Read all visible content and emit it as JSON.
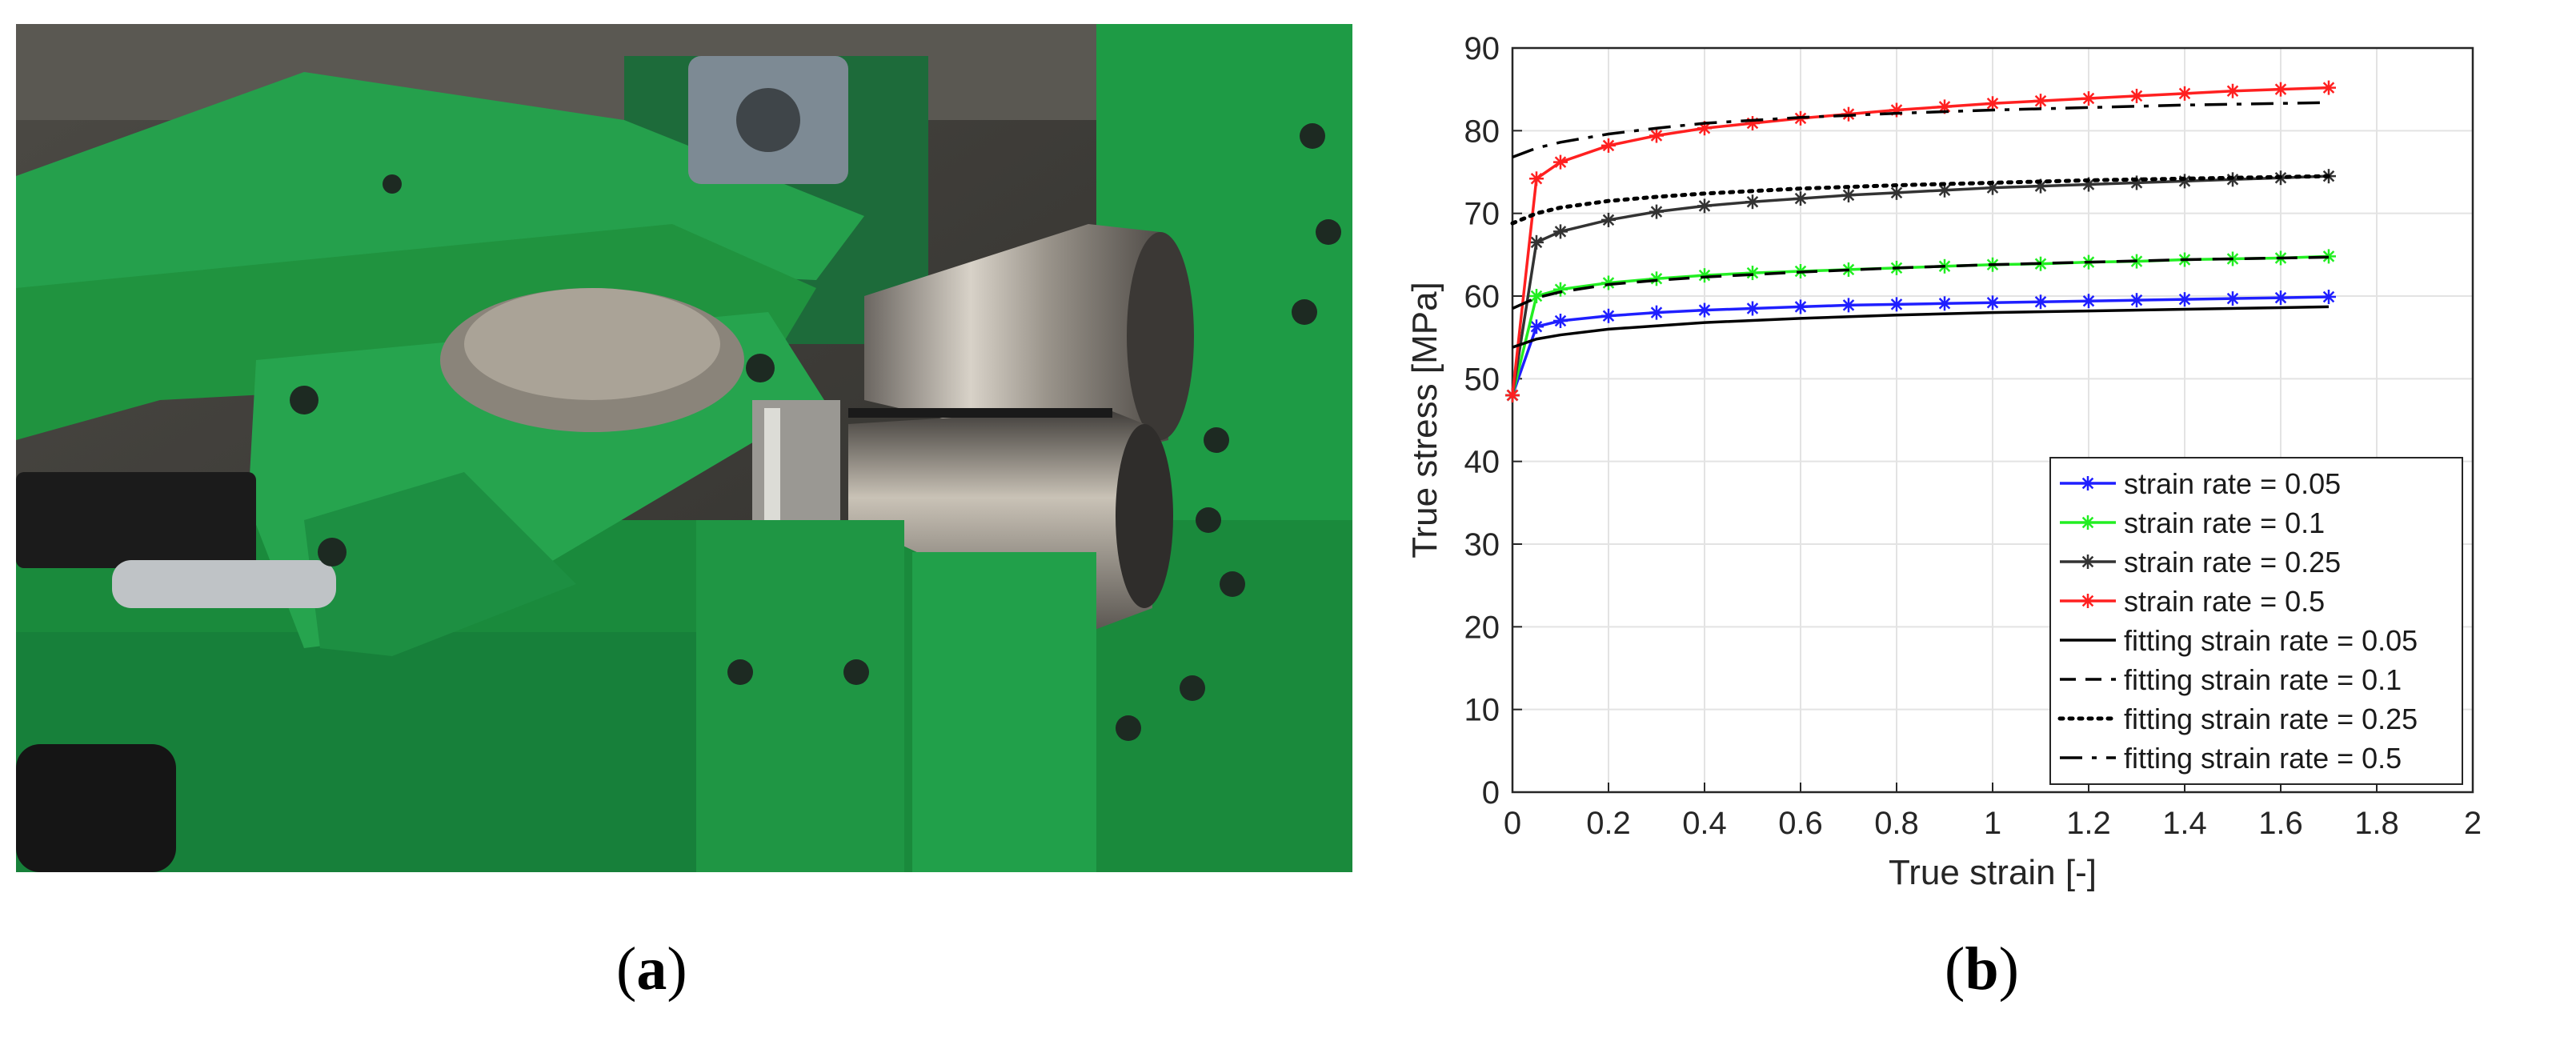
{
  "figure": {
    "panel_a_label": "a",
    "panel_b_label": "b"
  },
  "chart_data": {
    "type": "line",
    "title": "",
    "xlabel": "True strain [-]",
    "ylabel": "True stress [MPa]",
    "xlim": [
      0,
      2
    ],
    "ylim": [
      0,
      90
    ],
    "xticks": [
      0,
      0.2,
      0.4,
      0.6,
      0.8,
      1,
      1.2,
      1.4,
      1.6,
      1.8,
      2
    ],
    "xtick_labels": [
      "0",
      "0.2",
      "0.4",
      "0.6",
      "0.8",
      "1",
      "1.2",
      "1.4",
      "1.6",
      "1.8",
      "2"
    ],
    "yticks": [
      0,
      10,
      20,
      30,
      40,
      50,
      60,
      70,
      80,
      90
    ],
    "ytick_labels": [
      "0",
      "10",
      "20",
      "30",
      "40",
      "50",
      "60",
      "70",
      "80",
      "90"
    ],
    "grid": true,
    "legend_position": "bottom-right",
    "series": [
      {
        "name": "strain rate = 0.05",
        "color": "#1f1fff",
        "style": "solid-star",
        "x": [
          0,
          0.05,
          0.1,
          0.2,
          0.3,
          0.4,
          0.5,
          0.6,
          0.7,
          0.8,
          0.9,
          1.0,
          1.1,
          1.2,
          1.3,
          1.4,
          1.5,
          1.6,
          1.7
        ],
        "y": [
          48,
          56.3,
          57.0,
          57.6,
          58.0,
          58.3,
          58.5,
          58.7,
          58.9,
          59.0,
          59.1,
          59.2,
          59.3,
          59.4,
          59.5,
          59.6,
          59.7,
          59.8,
          59.9
        ]
      },
      {
        "name": "strain rate = 0.1",
        "color": "#22ee22",
        "style": "solid-star",
        "x": [
          0,
          0.05,
          0.1,
          0.2,
          0.3,
          0.4,
          0.5,
          0.6,
          0.7,
          0.8,
          0.9,
          1.0,
          1.1,
          1.2,
          1.3,
          1.4,
          1.5,
          1.6,
          1.7
        ],
        "y": [
          48,
          60.0,
          60.8,
          61.6,
          62.1,
          62.5,
          62.8,
          63.0,
          63.2,
          63.4,
          63.6,
          63.8,
          63.9,
          64.1,
          64.2,
          64.4,
          64.5,
          64.6,
          64.8
        ]
      },
      {
        "name": "strain rate = 0.25",
        "color": "#333333",
        "style": "solid-star",
        "x": [
          0,
          0.05,
          0.1,
          0.2,
          0.3,
          0.4,
          0.5,
          0.6,
          0.7,
          0.8,
          0.9,
          1.0,
          1.1,
          1.2,
          1.3,
          1.4,
          1.5,
          1.6,
          1.7
        ],
        "y": [
          48,
          66.5,
          67.8,
          69.2,
          70.2,
          70.9,
          71.4,
          71.8,
          72.2,
          72.5,
          72.8,
          73.1,
          73.3,
          73.5,
          73.7,
          73.9,
          74.1,
          74.3,
          74.5
        ]
      },
      {
        "name": "strain rate = 0.5",
        "color": "#ff2020",
        "style": "solid-star",
        "x": [
          0,
          0.05,
          0.1,
          0.2,
          0.3,
          0.4,
          0.5,
          0.6,
          0.7,
          0.8,
          0.9,
          1.0,
          1.1,
          1.2,
          1.3,
          1.4,
          1.5,
          1.6,
          1.7
        ],
        "y": [
          48,
          74.2,
          76.2,
          78.2,
          79.4,
          80.3,
          80.9,
          81.5,
          82.0,
          82.5,
          82.9,
          83.3,
          83.6,
          83.9,
          84.2,
          84.5,
          84.8,
          85.0,
          85.2
        ]
      },
      {
        "name": "fitting strain rate = 0.05",
        "color": "#000000",
        "style": "solid",
        "x": [
          0,
          0.05,
          0.1,
          0.2,
          0.3,
          0.4,
          0.6,
          0.8,
          1.0,
          1.2,
          1.4,
          1.6,
          1.7
        ],
        "y": [
          53.8,
          54.8,
          55.3,
          56.0,
          56.4,
          56.8,
          57.3,
          57.7,
          58.0,
          58.2,
          58.4,
          58.6,
          58.7
        ]
      },
      {
        "name": "fitting strain rate = 0.1",
        "color": "#000000",
        "style": "dashed",
        "x": [
          0,
          0.05,
          0.1,
          0.2,
          0.3,
          0.4,
          0.6,
          0.8,
          1.0,
          1.2,
          1.4,
          1.6,
          1.7
        ],
        "y": [
          58.5,
          59.8,
          60.5,
          61.4,
          61.9,
          62.3,
          62.9,
          63.4,
          63.8,
          64.1,
          64.4,
          64.6,
          64.7
        ]
      },
      {
        "name": "fitting strain rate = 0.25",
        "color": "#000000",
        "style": "dotted",
        "x": [
          0,
          0.05,
          0.1,
          0.2,
          0.3,
          0.4,
          0.6,
          0.8,
          1.0,
          1.2,
          1.4,
          1.6,
          1.7
        ],
        "y": [
          68.8,
          70.0,
          70.7,
          71.5,
          72.0,
          72.4,
          73.0,
          73.4,
          73.7,
          74.0,
          74.2,
          74.4,
          74.5
        ]
      },
      {
        "name": "fitting strain rate = 0.5",
        "color": "#000000",
        "style": "dashdot",
        "x": [
          0,
          0.05,
          0.1,
          0.2,
          0.3,
          0.4,
          0.6,
          0.8,
          1.0,
          1.2,
          1.4,
          1.6,
          1.7
        ],
        "y": [
          76.8,
          77.9,
          78.6,
          79.6,
          80.3,
          80.9,
          81.6,
          82.1,
          82.5,
          82.8,
          83.1,
          83.3,
          83.4
        ]
      }
    ]
  }
}
